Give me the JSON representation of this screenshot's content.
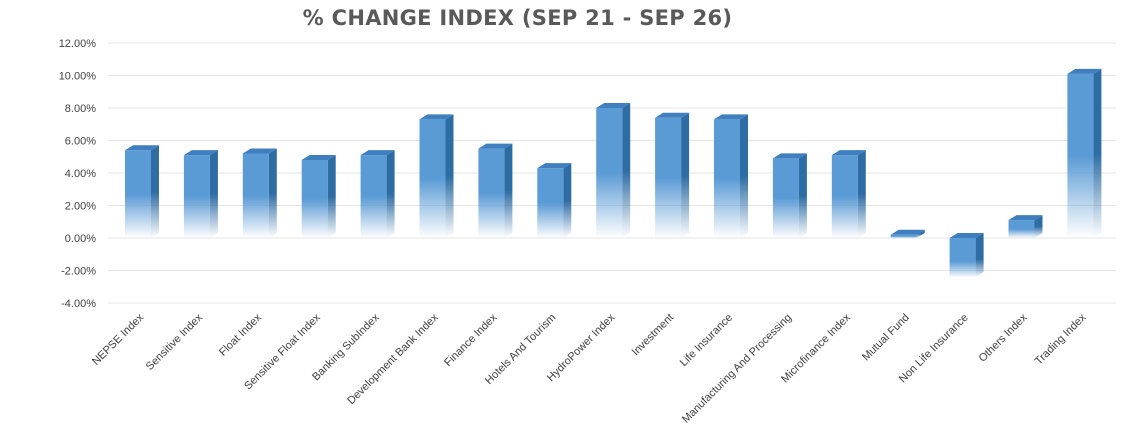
{
  "chart_data": {
    "type": "bar",
    "title": "% CHANGE INDEX (SEP 21 - SEP 26)",
    "xlabel": "",
    "ylabel": "",
    "ylim": [
      -0.04,
      0.12
    ],
    "y_ticks": [
      "12.00%",
      "10.00%",
      "8.00%",
      "6.00%",
      "4.00%",
      "2.00%",
      "0.00%",
      "-2.00%",
      "-4.00%"
    ],
    "y_tick_values": [
      0.12,
      0.1,
      0.08,
      0.06,
      0.04,
      0.02,
      0.0,
      -0.02,
      -0.04
    ],
    "grid": true,
    "bar_color": "#5b9bd5",
    "categories": [
      "NEPSE Index",
      "Sensitive Index",
      "Float Index",
      "Sensitive Float Index",
      "Banking SubIndex",
      "Development Bank Index",
      "Finance Index",
      "Hotels And Tourism",
      "HydroPower Index",
      "Investment",
      "Life Insurance",
      "Manufacturing And Processing",
      "Microfinance Index",
      "Mutual Fund",
      "Non Life Insurance",
      "Others Index",
      "Trading Index"
    ],
    "values": [
      0.054,
      0.051,
      0.052,
      0.048,
      0.051,
      0.073,
      0.055,
      0.043,
      0.08,
      0.074,
      0.073,
      0.049,
      0.051,
      0.002,
      -0.024,
      0.011,
      0.101
    ]
  }
}
